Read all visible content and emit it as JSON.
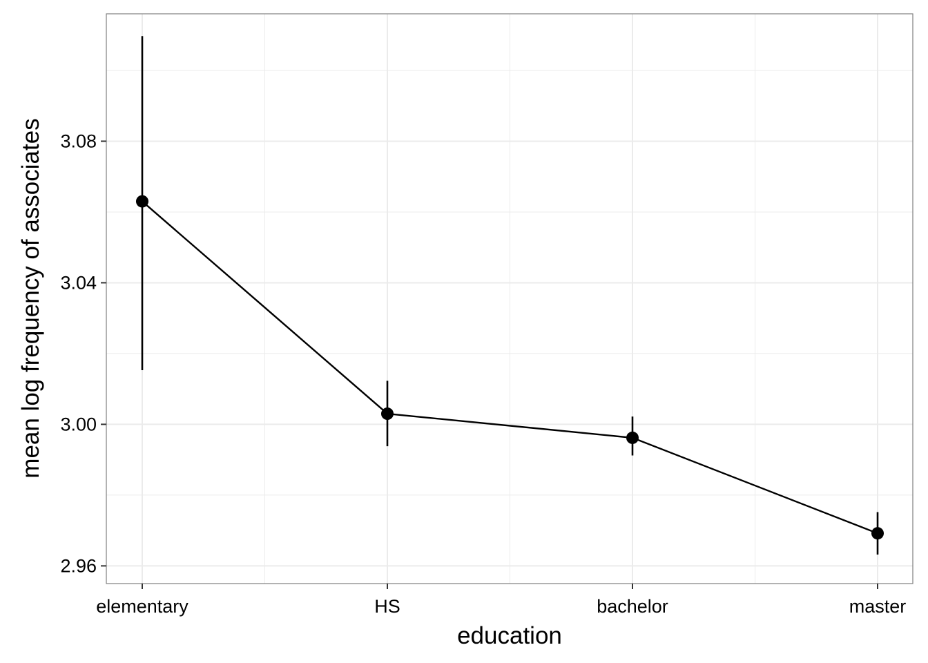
{
  "chart_data": {
    "type": "line",
    "title": "",
    "xlabel": "education",
    "ylabel": "mean log frequency of associates",
    "categories": [
      "elementary",
      "HS",
      "bachelor",
      "master"
    ],
    "series": [
      {
        "values": [
          3.063,
          3.003,
          2.9962,
          2.9692
        ],
        "error_lower": [
          3.0153,
          2.9938,
          2.9912,
          2.9632
        ],
        "error_upper": [
          3.1097,
          3.0123,
          3.0022,
          2.9752
        ]
      }
    ],
    "yticks": [
      2.96,
      3.0,
      3.04,
      3.08
    ],
    "ytick_labels": [
      "2.96",
      "3.00",
      "3.04",
      "3.08"
    ],
    "ylim": [
      2.955,
      3.116
    ],
    "grid": true,
    "colors": {
      "line": "#000000",
      "point": "#000000",
      "grid": "#ebebeb",
      "panel_border": "#7f7f7f"
    }
  }
}
